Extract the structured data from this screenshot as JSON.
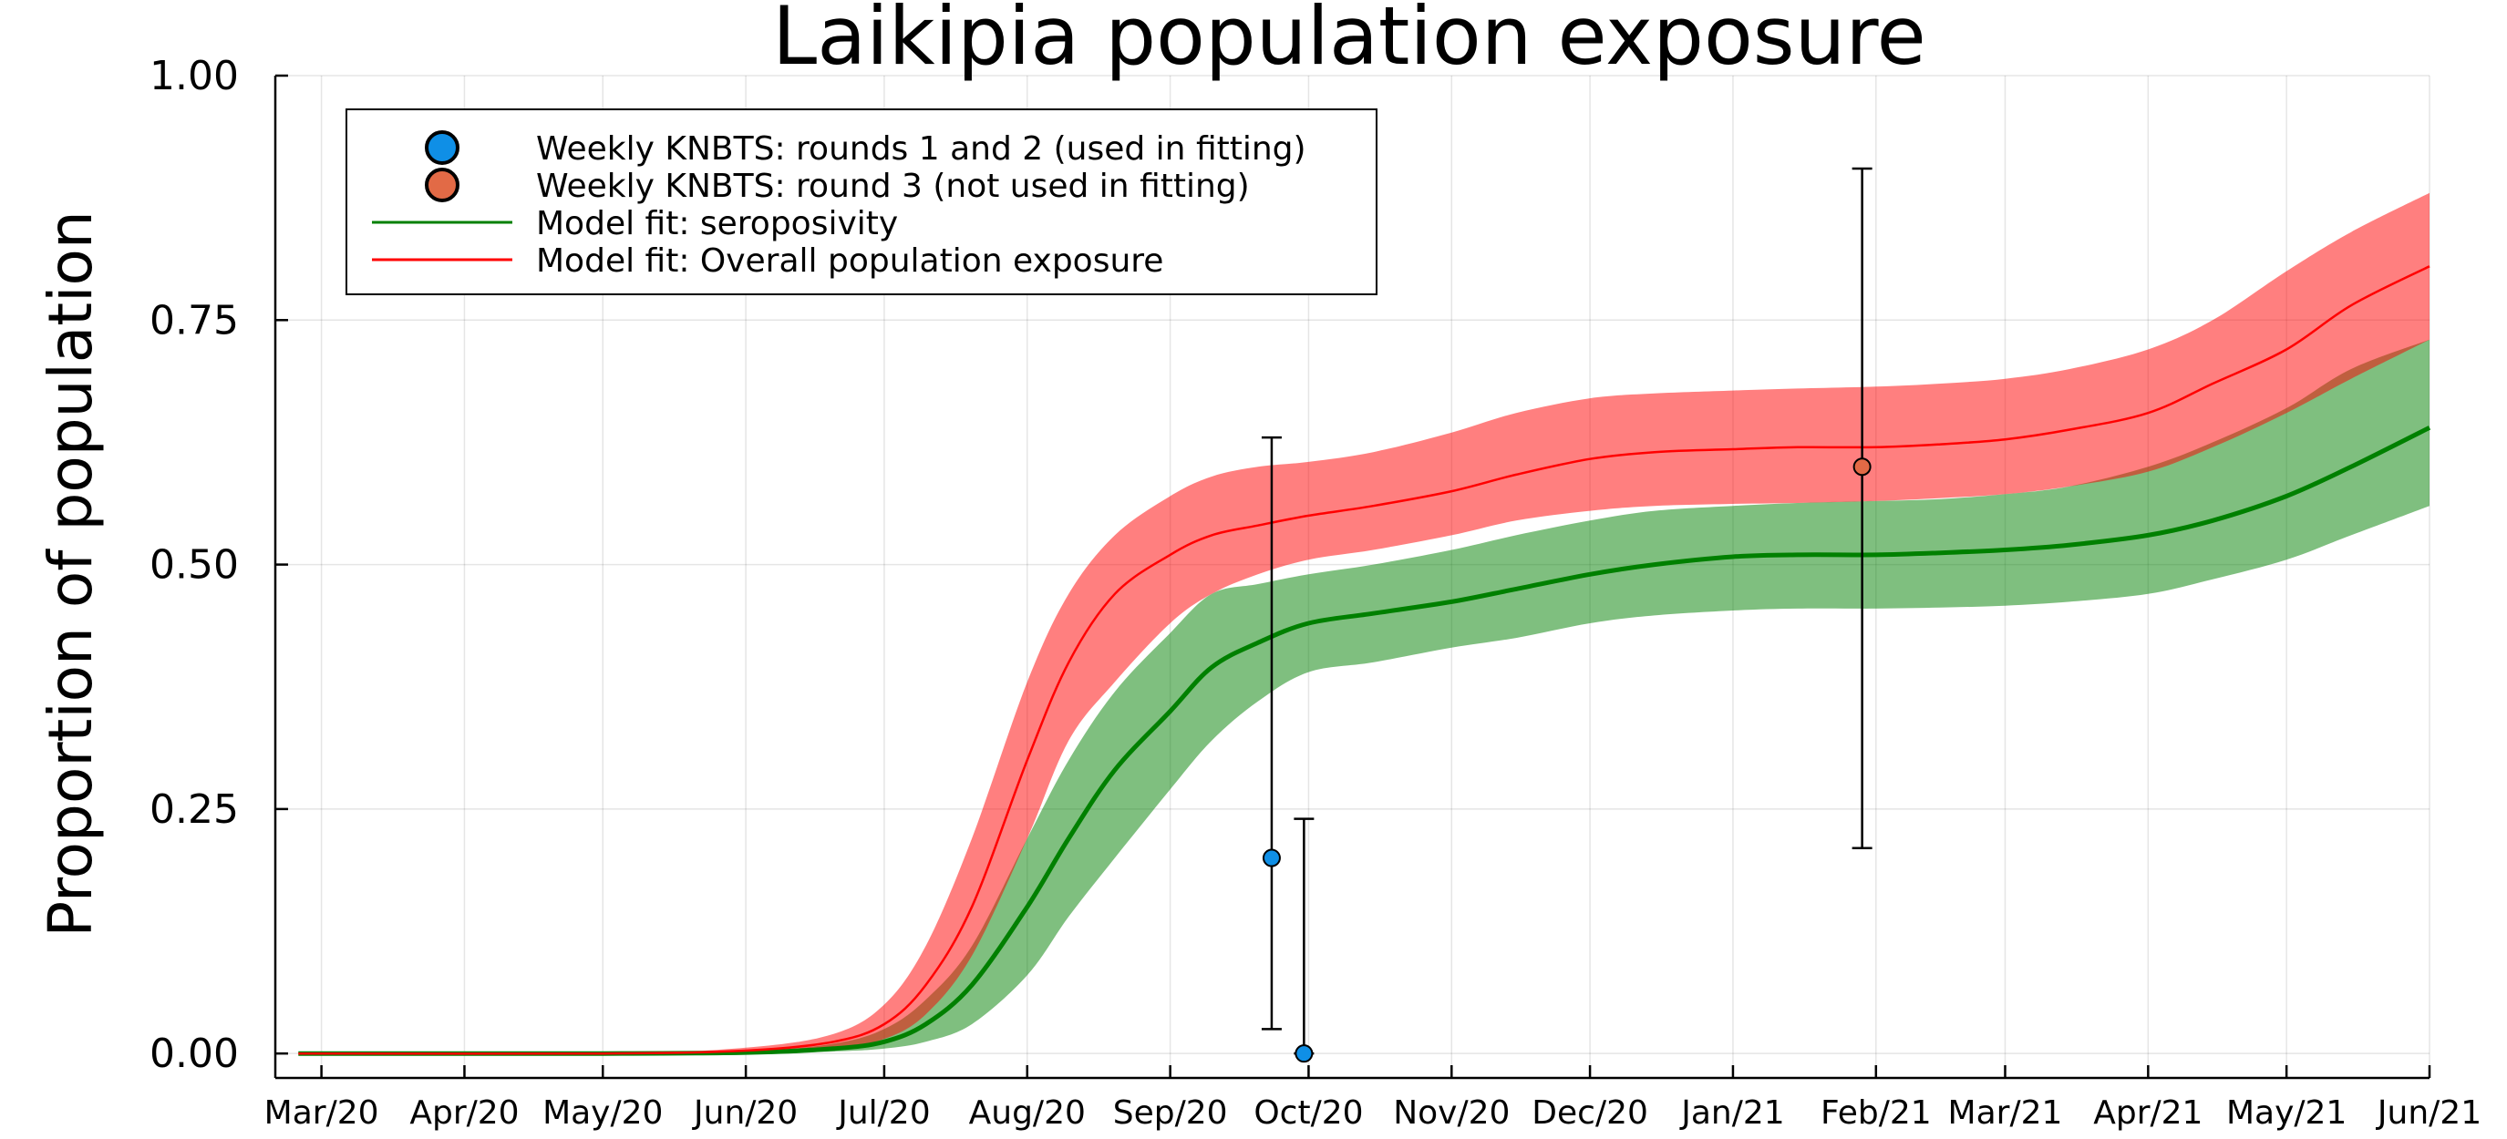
{
  "chart_data": {
    "type": "line",
    "title": "Laikipia population exposure",
    "xlabel": "",
    "ylabel": "Proportion of population",
    "grid": true,
    "legend_position": "top-left",
    "x_ticks": [
      "Mar/20",
      "Apr/20",
      "May/20",
      "Jun/20",
      "Jul/20",
      "Aug/20",
      "Sep/20",
      "Oct/20",
      "Nov/20",
      "Dec/20",
      "Jan/21",
      "Feb/21",
      "Mar/21",
      "Apr/21",
      "May/21",
      "Jun/21"
    ],
    "x_range": [
      "2020-02-20",
      "2021-06-01"
    ],
    "y_ticks": [
      "0.00",
      "0.25",
      "0.50",
      "0.75",
      "1.00"
    ],
    "ylim": [
      -0.025,
      1.0
    ],
    "legend": [
      {
        "label": "Weekly KNBTS: rounds 1 and 2 (used in fitting)",
        "kind": "marker",
        "color": "#0f8fe6"
      },
      {
        "label": "Weekly KNBTS: round 3 (not used in fitting)",
        "kind": "marker",
        "color": "#e26a46"
      },
      {
        "label": "Model fit: seroposivity",
        "kind": "line",
        "color": "#008000"
      },
      {
        "label": "Model fit: Overall population exposure",
        "kind": "line",
        "color": "#ff0000"
      }
    ],
    "series": [
      {
        "name": "Model fit: seroposivity",
        "color": "#008000",
        "band_color": "#008000",
        "x": [
          "2020-02-25",
          "2020-05-01",
          "2020-06-01",
          "2020-06-20",
          "2020-07-01",
          "2020-07-10",
          "2020-07-20",
          "2020-08-01",
          "2020-08-10",
          "2020-08-20",
          "2020-09-01",
          "2020-09-10",
          "2020-09-20",
          "2020-10-01",
          "2020-10-15",
          "2020-11-01",
          "2020-11-15",
          "2020-12-01",
          "2020-12-15",
          "2021-01-01",
          "2021-01-15",
          "2021-02-01",
          "2021-02-15",
          "2021-03-01",
          "2021-03-15",
          "2021-04-01",
          "2021-04-15",
          "2021-05-01",
          "2021-05-15",
          "2021-06-01"
        ],
        "mean": [
          0,
          0,
          0.001,
          0.005,
          0.012,
          0.03,
          0.07,
          0.15,
          0.22,
          0.29,
          0.35,
          0.395,
          0.42,
          0.44,
          0.45,
          0.462,
          0.475,
          0.49,
          0.5,
          0.508,
          0.51,
          0.51,
          0.512,
          0.515,
          0.52,
          0.53,
          0.545,
          0.57,
          0.6,
          0.64
        ],
        "lower": [
          0,
          0,
          0,
          0.002,
          0.005,
          0.012,
          0.03,
          0.08,
          0.14,
          0.2,
          0.27,
          0.32,
          0.36,
          0.39,
          0.4,
          0.415,
          0.425,
          0.44,
          0.448,
          0.453,
          0.455,
          0.455,
          0.456,
          0.458,
          0.462,
          0.47,
          0.485,
          0.505,
          0.53,
          0.56
        ],
        "upper": [
          0,
          0,
          0.002,
          0.01,
          0.025,
          0.055,
          0.11,
          0.22,
          0.3,
          0.37,
          0.43,
          0.47,
          0.48,
          0.49,
          0.5,
          0.515,
          0.53,
          0.545,
          0.555,
          0.56,
          0.563,
          0.565,
          0.567,
          0.572,
          0.58,
          0.6,
          0.625,
          0.66,
          0.7,
          0.73
        ]
      },
      {
        "name": "Model fit: Overall population exposure",
        "color": "#ff0000",
        "band_color": "#ff0000",
        "x": [
          "2020-02-25",
          "2020-05-01",
          "2020-06-01",
          "2020-06-20",
          "2020-07-01",
          "2020-07-10",
          "2020-07-20",
          "2020-08-01",
          "2020-08-10",
          "2020-08-20",
          "2020-09-01",
          "2020-09-10",
          "2020-09-20",
          "2020-10-01",
          "2020-10-15",
          "2020-11-01",
          "2020-11-15",
          "2020-12-01",
          "2020-12-15",
          "2021-01-01",
          "2021-01-15",
          "2021-02-01",
          "2021-02-15",
          "2021-03-01",
          "2021-03-15",
          "2021-04-01",
          "2021-04-15",
          "2021-05-01",
          "2021-05-15",
          "2021-06-01"
        ],
        "mean": [
          0,
          0,
          0.003,
          0.012,
          0.03,
          0.07,
          0.15,
          0.3,
          0.4,
          0.47,
          0.51,
          0.53,
          0.54,
          0.55,
          0.56,
          0.575,
          0.592,
          0.608,
          0.615,
          0.618,
          0.62,
          0.62,
          0.623,
          0.628,
          0.638,
          0.655,
          0.685,
          0.72,
          0.765,
          0.805
        ],
        "lower": [
          0,
          0,
          0.001,
          0.006,
          0.015,
          0.04,
          0.1,
          0.22,
          0.32,
          0.38,
          0.44,
          0.47,
          0.49,
          0.505,
          0.515,
          0.53,
          0.545,
          0.555,
          0.56,
          0.562,
          0.563,
          0.565,
          0.568,
          0.572,
          0.58,
          0.595,
          0.62,
          0.655,
          0.69,
          0.73
        ],
        "upper": [
          0,
          0,
          0.006,
          0.02,
          0.05,
          0.11,
          0.22,
          0.38,
          0.47,
          0.53,
          0.57,
          0.59,
          0.6,
          0.605,
          0.615,
          0.635,
          0.655,
          0.67,
          0.675,
          0.678,
          0.68,
          0.682,
          0.685,
          0.69,
          0.7,
          0.72,
          0.75,
          0.8,
          0.84,
          0.88
        ]
      }
    ],
    "points": [
      {
        "name": "Weekly KNBTS: rounds 1 and 2 (used in fitting)",
        "color": "#0f8fe6",
        "x": "2020-09-23",
        "y": 0.2,
        "err_low": 0.025,
        "err_high": 0.63
      },
      {
        "name": "Weekly KNBTS: rounds 1 and 2 (used in fitting)",
        "color": "#0f8fe6",
        "x": "2020-09-30",
        "y": 0.0,
        "err_low": 0.0,
        "err_high": 0.24
      },
      {
        "name": "Weekly KNBTS: round 3 (not used in fitting)",
        "color": "#e26a46",
        "x": "2021-01-29",
        "y": 0.6,
        "err_low": 0.21,
        "err_high": 0.905
      }
    ]
  }
}
